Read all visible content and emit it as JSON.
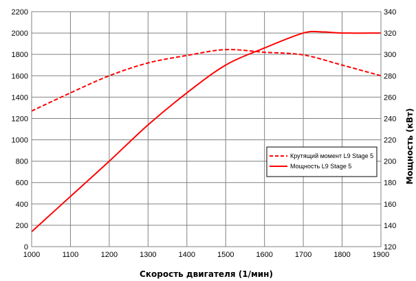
{
  "chart_data": {
    "type": "line",
    "title": "",
    "xlabel": "Скорость двигателя (1/мин)",
    "ylabel_left": "",
    "ylabel_right": "Мощность (кВт)",
    "xlim": [
      1000,
      1900
    ],
    "ylim_left": [
      0,
      2200
    ],
    "ylim_right": [
      120,
      340
    ],
    "x_ticks": [
      "1000",
      "1100",
      "1200",
      "1300",
      "1400",
      "1500",
      "1600",
      "1700",
      "1800",
      "1900"
    ],
    "y_left_ticks": [
      "0",
      "200",
      "400",
      "600",
      "800",
      "1000",
      "1200",
      "1400",
      "1600",
      "1800",
      "2000",
      "2200"
    ],
    "y_right_ticks": [
      "120",
      "140",
      "160",
      "180",
      "200",
      "220",
      "240",
      "260",
      "280",
      "300",
      "320",
      "340"
    ],
    "grid": true,
    "legend_position": "right",
    "series": [
      {
        "name": "Крутящий момент L9 Stage 5",
        "axis": "left",
        "style": "dashed",
        "color": "#ff0000",
        "x": [
          1000,
          1100,
          1200,
          1300,
          1400,
          1500,
          1600,
          1700,
          1800,
          1900
        ],
        "y": [
          1270,
          1440,
          1600,
          1720,
          1790,
          1845,
          1820,
          1795,
          1700,
          1600
        ]
      },
      {
        "name": "Мощность L9 Stage 5",
        "axis": "right",
        "style": "solid",
        "color": "#ff0000",
        "x": [
          1000,
          1100,
          1200,
          1300,
          1400,
          1500,
          1600,
          1700,
          1750,
          1800,
          1900
        ],
        "y": [
          134,
          167,
          200,
          234,
          264,
          290,
          306,
          320,
          321,
          320,
          320
        ]
      }
    ]
  }
}
